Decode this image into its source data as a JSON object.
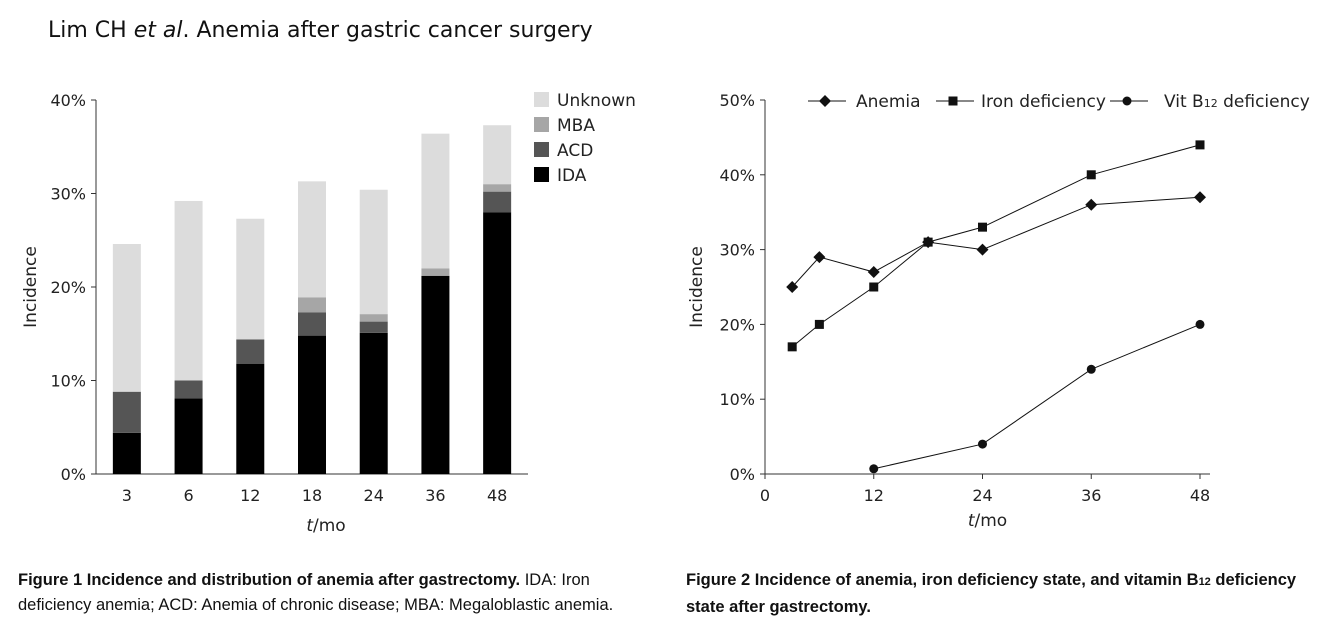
{
  "header": {
    "authors": "Lim CH ",
    "etal": "et al",
    "title": ". Anemia after gastric cancer surgery"
  },
  "captions": {
    "fig1_bold": "Figure 1  Incidence and distribution of anemia after gastrectomy.",
    "fig1_rest": " IDA: Iron deficiency anemia; ACD: Anemia of chronic disease; MBA: Megaloblastic anemia.",
    "fig2_bold_a": "Figure 2  Incidence of anemia, iron deficiency state, and vitamin B",
    "fig2_sub": "12",
    "fig2_bold_b": " deficiency state after gastrectomy."
  },
  "colors": {
    "IDA": "#000000",
    "ACD": "#555555",
    "MBA": "#a6a6a6",
    "Unknown": "#dcdcdc",
    "line": "#111111",
    "axis": "#333333"
  },
  "chart_data": [
    {
      "type": "bar",
      "stacked": true,
      "categories": [
        "3",
        "6",
        "12",
        "18",
        "24",
        "36",
        "48"
      ],
      "series": [
        {
          "name": "IDA",
          "values": [
            4.4,
            8.1,
            11.8,
            14.8,
            15.1,
            21.2,
            28.0
          ]
        },
        {
          "name": "ACD",
          "values": [
            4.4,
            1.9,
            2.6,
            2.5,
            1.2,
            0.0,
            2.2
          ]
        },
        {
          "name": "MBA",
          "values": [
            0.0,
            0.0,
            0.0,
            1.6,
            0.8,
            0.8,
            0.8
          ]
        },
        {
          "name": "Unknown",
          "values": [
            15.8,
            19.2,
            12.9,
            12.4,
            13.3,
            14.4,
            6.3
          ]
        }
      ],
      "xlabel_italic": "t",
      "xlabel_rest": "/mo",
      "ylabel": "Incidence",
      "ylim": [
        0,
        40
      ],
      "yticks": [
        "0%",
        "10%",
        "20%",
        "30%",
        "40%"
      ],
      "legend_order": [
        "Unknown",
        "MBA",
        "ACD",
        "IDA"
      ],
      "legend_position": "top-right"
    },
    {
      "type": "line",
      "series": [
        {
          "name": "Anemia",
          "marker": "diamond",
          "x": [
            3,
            6,
            12,
            18,
            24,
            36,
            48
          ],
          "values": [
            25,
            29,
            27,
            31,
            30,
            36,
            37
          ]
        },
        {
          "name": "Iron deficiency",
          "marker": "square",
          "x": [
            3,
            6,
            12,
            18,
            24,
            36,
            48
          ],
          "values": [
            17,
            20,
            25,
            31,
            33,
            40,
            44
          ]
        },
        {
          "name_a": "Vit B",
          "name_sub": "12",
          "name_b": " deficiency",
          "marker": "circle",
          "x": [
            12,
            24,
            36,
            48
          ],
          "values": [
            0.7,
            4,
            14,
            20
          ]
        }
      ],
      "xticks": [
        "0",
        "12",
        "24",
        "36",
        "48"
      ],
      "xlim": [
        0,
        48
      ],
      "xlabel_italic": "t",
      "xlabel_rest": "/mo",
      "ylabel": "Incidence",
      "ylim": [
        0,
        50
      ],
      "yticks": [
        "0%",
        "10%",
        "20%",
        "30%",
        "40%",
        "50%"
      ],
      "legend_position": "top"
    }
  ]
}
